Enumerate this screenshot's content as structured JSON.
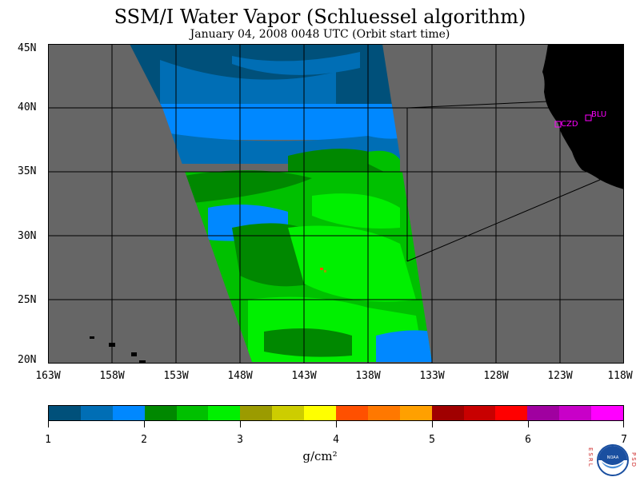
{
  "title": "SSM/I Water Vapor (Schluessel algorithm)",
  "subtitle": "January 04, 2008  0048 UTC  (Orbit start time)",
  "map": {
    "lat_labels": [
      "45N",
      "40N",
      "35N",
      "30N",
      "25N",
      "20N"
    ],
    "lon_labels": [
      "163W",
      "158W",
      "153W",
      "148W",
      "143W",
      "138W",
      "133W",
      "128W",
      "123W",
      "118W"
    ],
    "stations": [
      {
        "label": "CZD"
      },
      {
        "label": "BLU"
      }
    ],
    "colors": {
      "land": "#000000",
      "no_data": "#666666",
      "grid": "#000000",
      "station": "#ff00ff"
    }
  },
  "colorbar": {
    "colors": [
      "#00507a",
      "#006eb5",
      "#0088ff",
      "#008800",
      "#00c000",
      "#00f000",
      "#9b9b00",
      "#cdcd00",
      "#ffff00",
      "#ff5000",
      "#ff7800",
      "#ffa000",
      "#a00000",
      "#c80000",
      "#ff0000",
      "#a000a0",
      "#c800c8",
      "#ff00ff"
    ],
    "ticks": [
      "1",
      "2",
      "3",
      "4",
      "5",
      "6",
      "7"
    ],
    "units": "g/cm²"
  },
  "logo": {
    "left_text": "ESRL",
    "right_text": "PSD",
    "name": "NOAA"
  }
}
